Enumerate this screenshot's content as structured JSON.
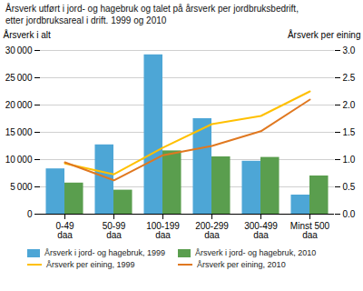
{
  "chart_data": {
    "type": "bar",
    "title": "Årsverk utført i jord- og hagebruk og talet på årsverk per jordbruksbedrift,\netter jordbruksareal i drift. 1999 og 2010",
    "categories": [
      "0-49\ndaa",
      "50-99\ndaa",
      "100-199\ndaa",
      "200-299\ndaa",
      "300-499\ndaa",
      "Minst 500\ndaa"
    ],
    "series": [
      {
        "name": "Årsverk i jord- og hagebruk, 1999",
        "type": "bar",
        "color": "#4da6d6",
        "values": [
          8300,
          12700,
          29200,
          17500,
          9700,
          3500
        ]
      },
      {
        "name": "Årsverk i jord- og hagebruk, 2010",
        "type": "bar",
        "color": "#5a9e4e",
        "values": [
          5700,
          4400,
          11600,
          10500,
          10400,
          7000
        ]
      },
      {
        "name": "Årsverk per eining, 1999",
        "type": "line",
        "axis": "y2",
        "color": "#ffc000",
        "values": [
          0.93,
          0.73,
          1.22,
          1.65,
          1.8,
          2.25
        ]
      },
      {
        "name": "Årsverk per eining, 2010",
        "type": "line",
        "axis": "y2",
        "color": "#e07820",
        "values": [
          0.95,
          0.62,
          1.08,
          1.25,
          1.52,
          2.1
        ]
      }
    ],
    "ylabel": "Årsverk i alt",
    "y2label": "Årsverk per eining",
    "ylim": [
      0,
      30000
    ],
    "yticks": [
      0,
      {
        "value": 5000,
        "label": "5 000"
      },
      {
        "value": 10000,
        "label": "10 000"
      },
      {
        "value": 15000,
        "label": "15 000"
      },
      {
        "value": 20000,
        "label": "20 000"
      },
      {
        "value": 25000,
        "label": "25 000"
      },
      {
        "value": 30000,
        "label": "30 000"
      }
    ],
    "y2lim": [
      0,
      3.0
    ],
    "y2ticks": [
      {
        "value": 0,
        "label": "0.0"
      },
      0.5,
      {
        "value": 1,
        "label": "1.0"
      },
      1.5,
      {
        "value": 2,
        "label": "2.0"
      },
      2.5,
      {
        "value": 3,
        "label": "3.0"
      }
    ],
    "grid": true,
    "legend": "bottom"
  }
}
